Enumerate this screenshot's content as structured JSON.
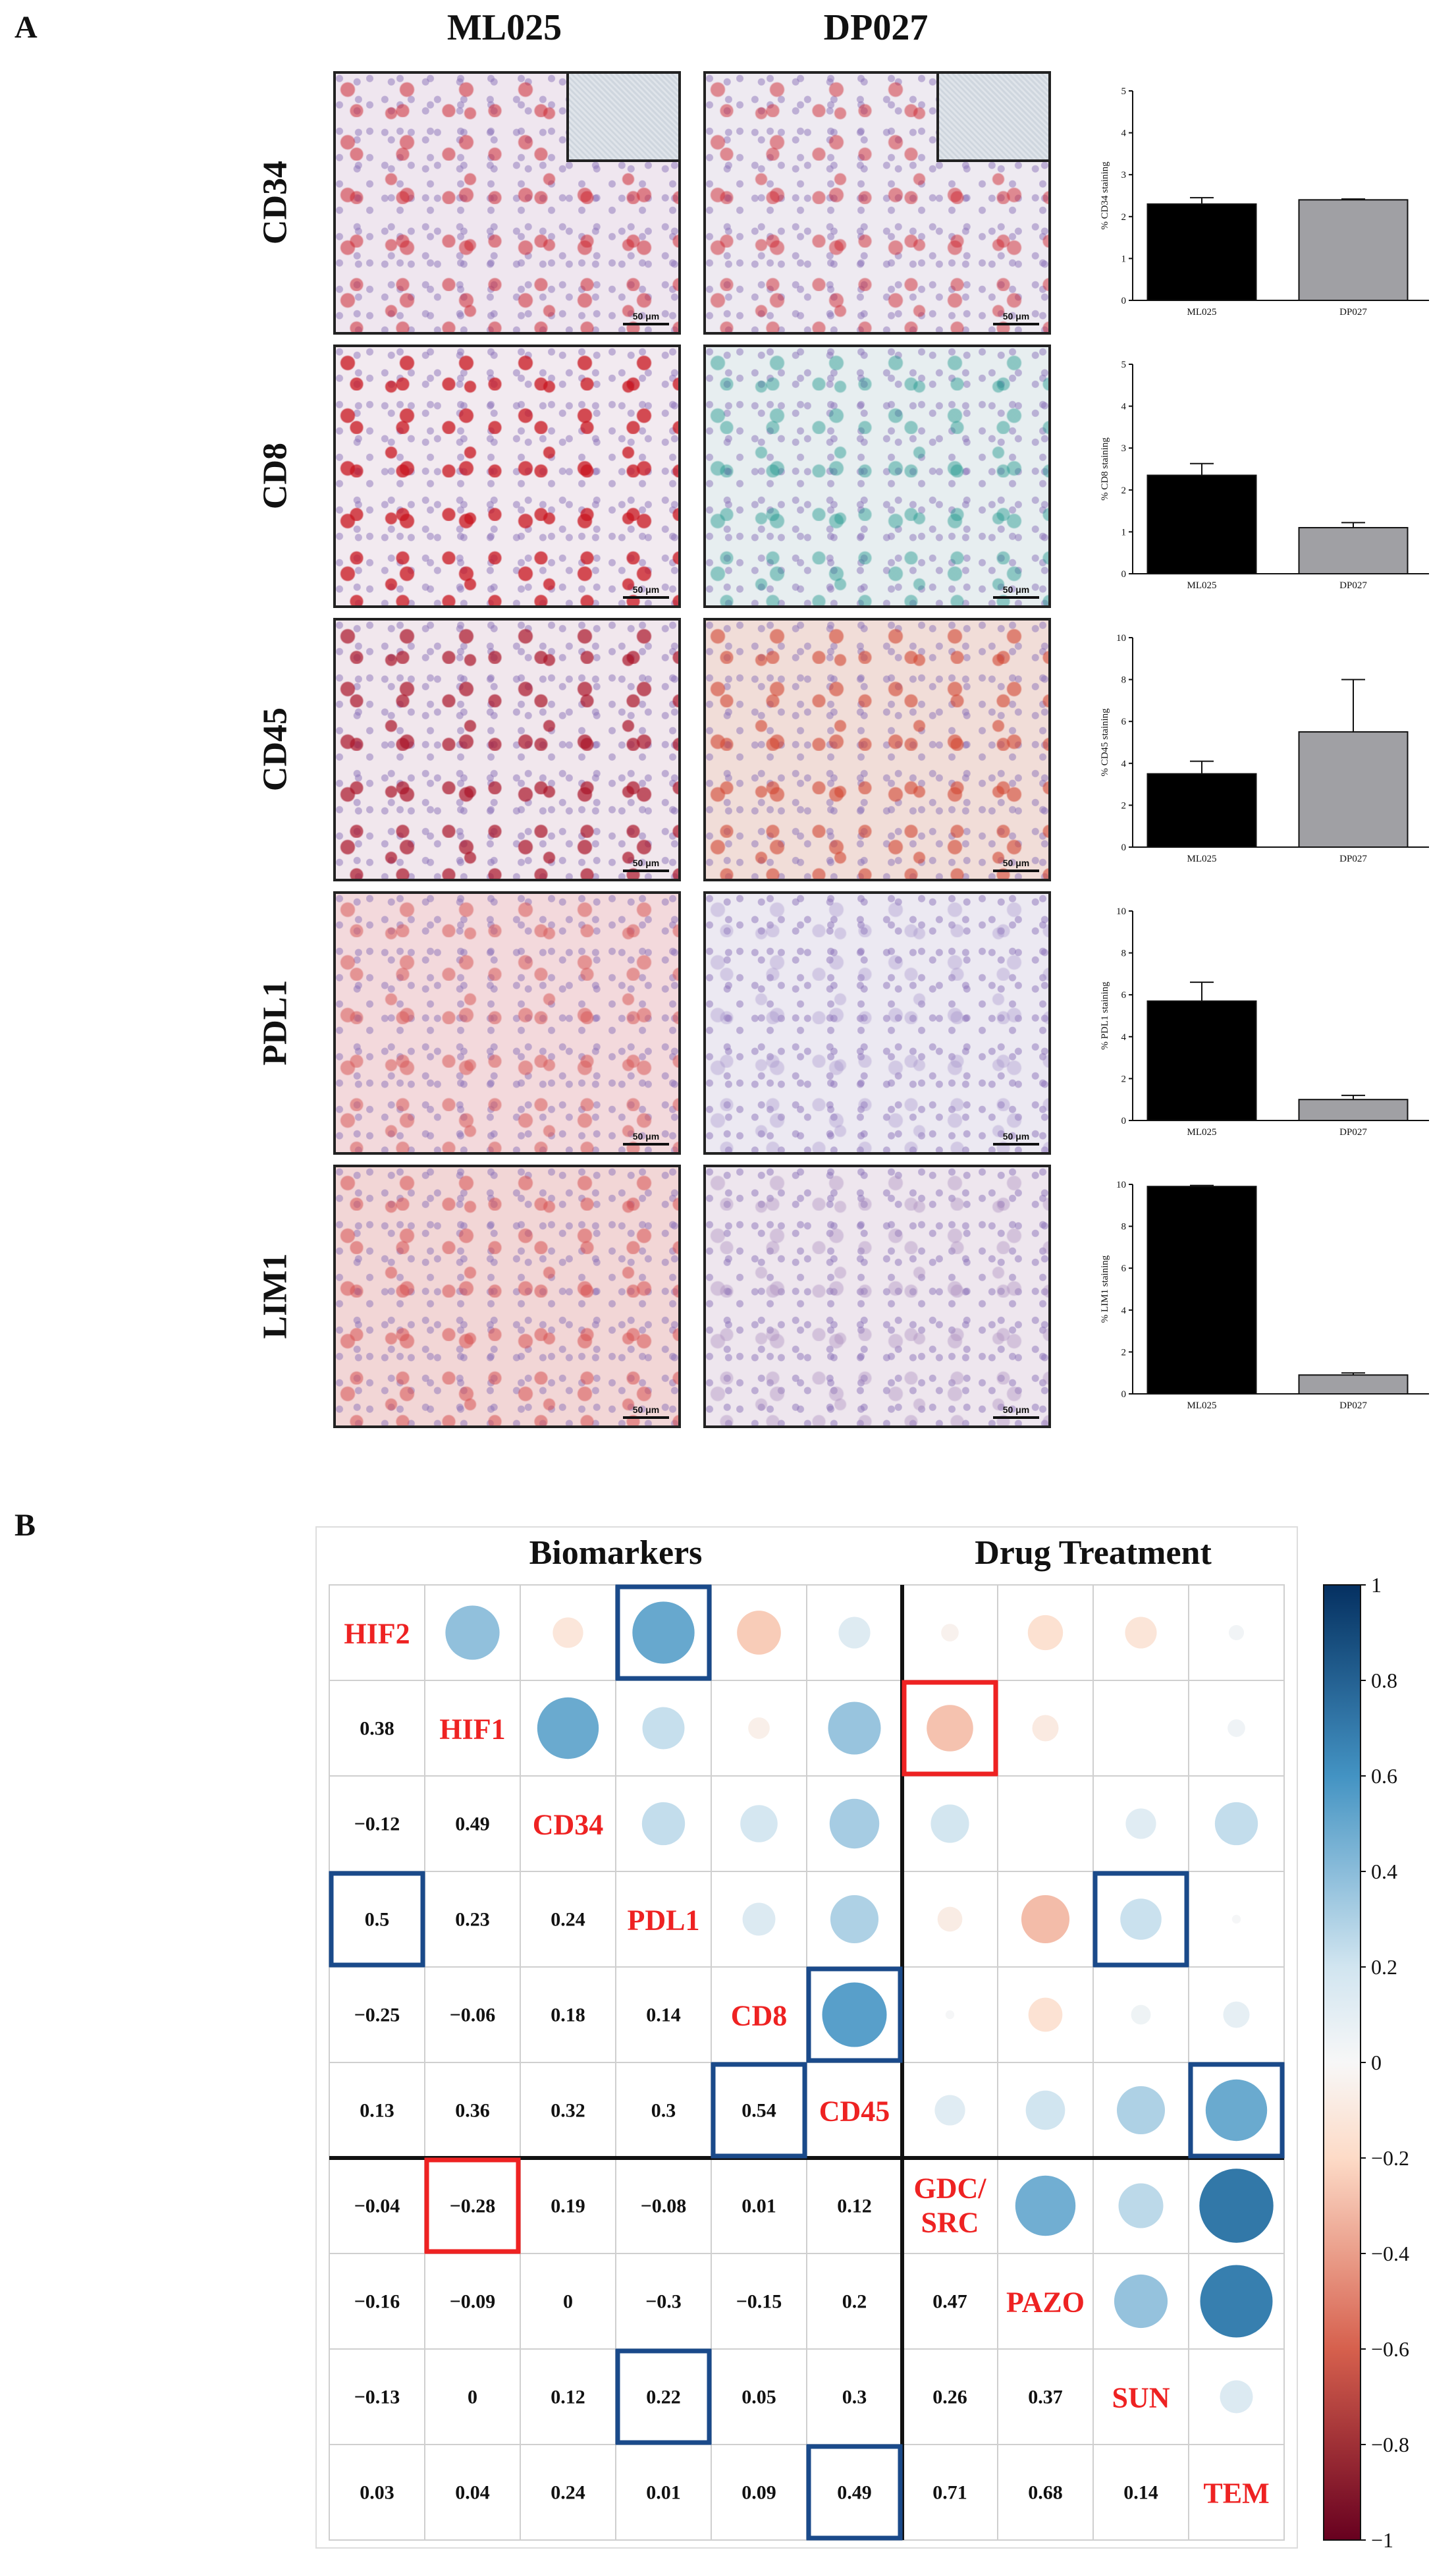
{
  "panel_a": {
    "letter": "A",
    "columns": [
      "ML025",
      "DP027"
    ],
    "rows": [
      {
        "marker": "CD34",
        "scale": "50 μm"
      },
      {
        "marker": "CD8",
        "scale": "50 μm"
      },
      {
        "marker": "CD45",
        "scale": "50 μm"
      },
      {
        "marker": "PDL1",
        "scale": "50 μm"
      },
      {
        "marker": "LIM1",
        "scale": "50 μm"
      }
    ]
  },
  "panel_b": {
    "letter": "B",
    "group_labels": [
      "Biomarkers",
      "Drug Treatment"
    ]
  },
  "colors": {
    "bar_ml025": "#000000",
    "bar_dp027": "#a0a0a4",
    "label_red": "#ee2222",
    "box_blue": "#1a4a8a",
    "box_red": "#ee2222"
  },
  "chart_data": [
    {
      "type": "bar",
      "categories": [
        "ML025",
        "DP027"
      ],
      "values": [
        2.3,
        2.4
      ],
      "errors": [
        0.15,
        0.02
      ],
      "ylabel": "% CD34 staining",
      "ylim": [
        0,
        5
      ],
      "yticks": [
        0,
        1,
        2,
        3,
        4,
        5
      ]
    },
    {
      "type": "bar",
      "categories": [
        "ML025",
        "DP027"
      ],
      "values": [
        2.35,
        1.1
      ],
      "errors": [
        0.28,
        0.12
      ],
      "ylabel": "% CD8 staining",
      "ylim": [
        0,
        5
      ],
      "yticks": [
        0,
        1,
        2,
        3,
        4,
        5
      ]
    },
    {
      "type": "bar",
      "categories": [
        "ML025",
        "DP027"
      ],
      "values": [
        3.5,
        5.5
      ],
      "errors": [
        0.6,
        2.5
      ],
      "ylabel": "% CD45 staining",
      "ylim": [
        0,
        10
      ],
      "yticks": [
        0,
        2,
        4,
        6,
        8,
        10
      ]
    },
    {
      "type": "bar",
      "categories": [
        "ML025",
        "DP027"
      ],
      "values": [
        5.7,
        1.0
      ],
      "errors": [
        0.9,
        0.2
      ],
      "ylabel": "% PDL1 staining",
      "ylim": [
        0,
        10
      ],
      "yticks": [
        0,
        2,
        4,
        6,
        8,
        10
      ]
    },
    {
      "type": "bar",
      "categories": [
        "ML025",
        "DP027"
      ],
      "values": [
        9.9,
        0.9
      ],
      "errors": [
        0.05,
        0.1
      ],
      "ylabel": "% LIM1 staining",
      "ylim": [
        0,
        10
      ],
      "yticks": [
        0,
        2,
        4,
        6,
        8,
        10
      ]
    },
    {
      "type": "heatmap",
      "title": "Correlation matrix",
      "variables": [
        "HIF2",
        "HIF1",
        "CD34",
        "PDL1",
        "CD8",
        "CD45",
        "GDC/\nSRC",
        "PAZO",
        "SUN",
        "TEM"
      ],
      "lower_labels": [
        [
          "",
          "",
          "",
          "",
          "",
          "",
          "",
          "",
          "",
          ""
        ],
        [
          "0.38",
          "",
          "",
          "",
          "",
          "",
          "",
          "",
          "",
          ""
        ],
        [
          "−0.12",
          "0.49",
          "",
          "",
          "",
          "",
          "",
          "",
          "",
          ""
        ],
        [
          "0.5",
          "0.23",
          "0.24",
          "",
          "",
          "",
          "",
          "",
          "",
          ""
        ],
        [
          "−0.25",
          "−0.06",
          "0.18",
          "0.14",
          "",
          "",
          "",
          "",
          "",
          ""
        ],
        [
          "0.13",
          "0.36",
          "0.32",
          "0.3",
          "0.54",
          "",
          "",
          "",
          "",
          ""
        ],
        [
          "−0.04",
          "−0.28",
          "0.19",
          "−0.08",
          "0.01",
          "0.12",
          "",
          "",
          "",
          ""
        ],
        [
          "−0.16",
          "−0.09",
          "0",
          "−0.3",
          "−0.15",
          "0.2",
          "0.47",
          "",
          "",
          ""
        ],
        [
          "−0.13",
          "0",
          "0.12",
          "0.22",
          "0.05",
          "0.3",
          "0.26",
          "0.37",
          "",
          ""
        ],
        [
          "0.03",
          "0.04",
          "0.24",
          "0.01",
          "0.09",
          "0.49",
          "0.71",
          "0.68",
          "0.14",
          ""
        ]
      ],
      "matrix": [
        [
          1,
          0.38,
          -0.12,
          0.5,
          -0.25,
          0.13,
          -0.04,
          -0.16,
          -0.13,
          0.03
        ],
        [
          0.38,
          1,
          0.49,
          0.23,
          -0.06,
          0.36,
          -0.28,
          -0.09,
          0,
          0.04
        ],
        [
          -0.12,
          0.49,
          1,
          0.24,
          0.18,
          0.32,
          0.19,
          0,
          0.12,
          0.24
        ],
        [
          0.5,
          0.23,
          0.24,
          1,
          0.14,
          0.3,
          -0.08,
          -0.3,
          0.22,
          0.01
        ],
        [
          -0.25,
          -0.06,
          0.18,
          0.14,
          1,
          0.54,
          0.01,
          -0.15,
          0.05,
          0.09
        ],
        [
          0.13,
          0.36,
          0.32,
          0.3,
          0.54,
          1,
          0.12,
          0.2,
          0.3,
          0.49
        ],
        [
          -0.04,
          -0.28,
          0.19,
          -0.08,
          0.01,
          0.12,
          1,
          0.47,
          0.26,
          0.71
        ],
        [
          -0.16,
          -0.09,
          0,
          -0.3,
          -0.15,
          0.2,
          0.47,
          1,
          0.37,
          0.68
        ],
        [
          -0.13,
          0,
          0.12,
          0.22,
          0.05,
          0.3,
          0.26,
          0.37,
          1,
          0.14
        ],
        [
          0.03,
          0.04,
          0.24,
          0.01,
          0.09,
          0.49,
          0.71,
          0.68,
          0.14,
          1
        ]
      ],
      "highlight_blue": [
        [
          0,
          3
        ],
        [
          3,
          0
        ],
        [
          4,
          5
        ],
        [
          5,
          4
        ],
        [
          3,
          8
        ],
        [
          8,
          3
        ],
        [
          5,
          9
        ],
        [
          9,
          5
        ]
      ],
      "highlight_red": [
        [
          1,
          6
        ],
        [
          6,
          1
        ]
      ],
      "colorbar": {
        "range": [
          -1,
          1
        ],
        "ticks": [
          "1",
          "0.8",
          "0.6",
          "0.4",
          "0.2",
          "0",
          "−0.2",
          "−0.4",
          "−0.6",
          "−0.8",
          "−1"
        ]
      }
    }
  ]
}
